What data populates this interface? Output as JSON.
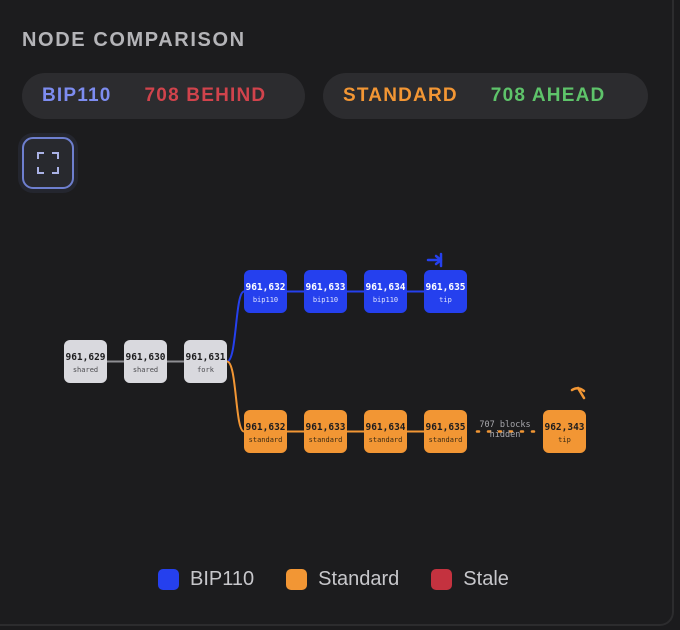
{
  "title": "NODE COMPARISON",
  "colors": {
    "bip110": "#2540ee",
    "standard": "#f29634",
    "stale": "#c4323f",
    "shared": "#d9d9de",
    "bip110_text": "#7d8cf0",
    "behind_text": "#d1434c",
    "standard_text": "#f29634",
    "ahead_text": "#5ec36a"
  },
  "status": {
    "left": {
      "node": "BIP110",
      "status": "708 BEHIND"
    },
    "right": {
      "node": "STANDARD",
      "status": "708 AHEAD"
    }
  },
  "expand_button_icon": "expand-icon",
  "chain": {
    "shared": [
      {
        "height": "961,629",
        "label": "shared"
      },
      {
        "height": "961,630",
        "label": "shared"
      },
      {
        "height": "961,631",
        "label": "fork"
      }
    ],
    "bip110": [
      {
        "height": "961,632",
        "label": "bip110"
      },
      {
        "height": "961,633",
        "label": "bip110"
      },
      {
        "height": "961,634",
        "label": "bip110"
      },
      {
        "height": "961,635",
        "label": "tip"
      }
    ],
    "standard": [
      {
        "height": "961,632",
        "label": "standard"
      },
      {
        "height": "961,633",
        "label": "standard"
      },
      {
        "height": "961,634",
        "label": "standard"
      },
      {
        "height": "961,635",
        "label": "standard"
      },
      {
        "height": "962,343",
        "label": "tip"
      }
    ],
    "hidden_text": [
      "707 blocks",
      "hidden"
    ],
    "bip110_tip_icon": "arrow-right-icon",
    "standard_tip_icon": "pickaxe-icon"
  },
  "legend": [
    {
      "label": "BIP110",
      "color": "#2540ee"
    },
    {
      "label": "Standard",
      "color": "#f29634"
    },
    {
      "label": "Stale",
      "color": "#c4323f"
    }
  ]
}
